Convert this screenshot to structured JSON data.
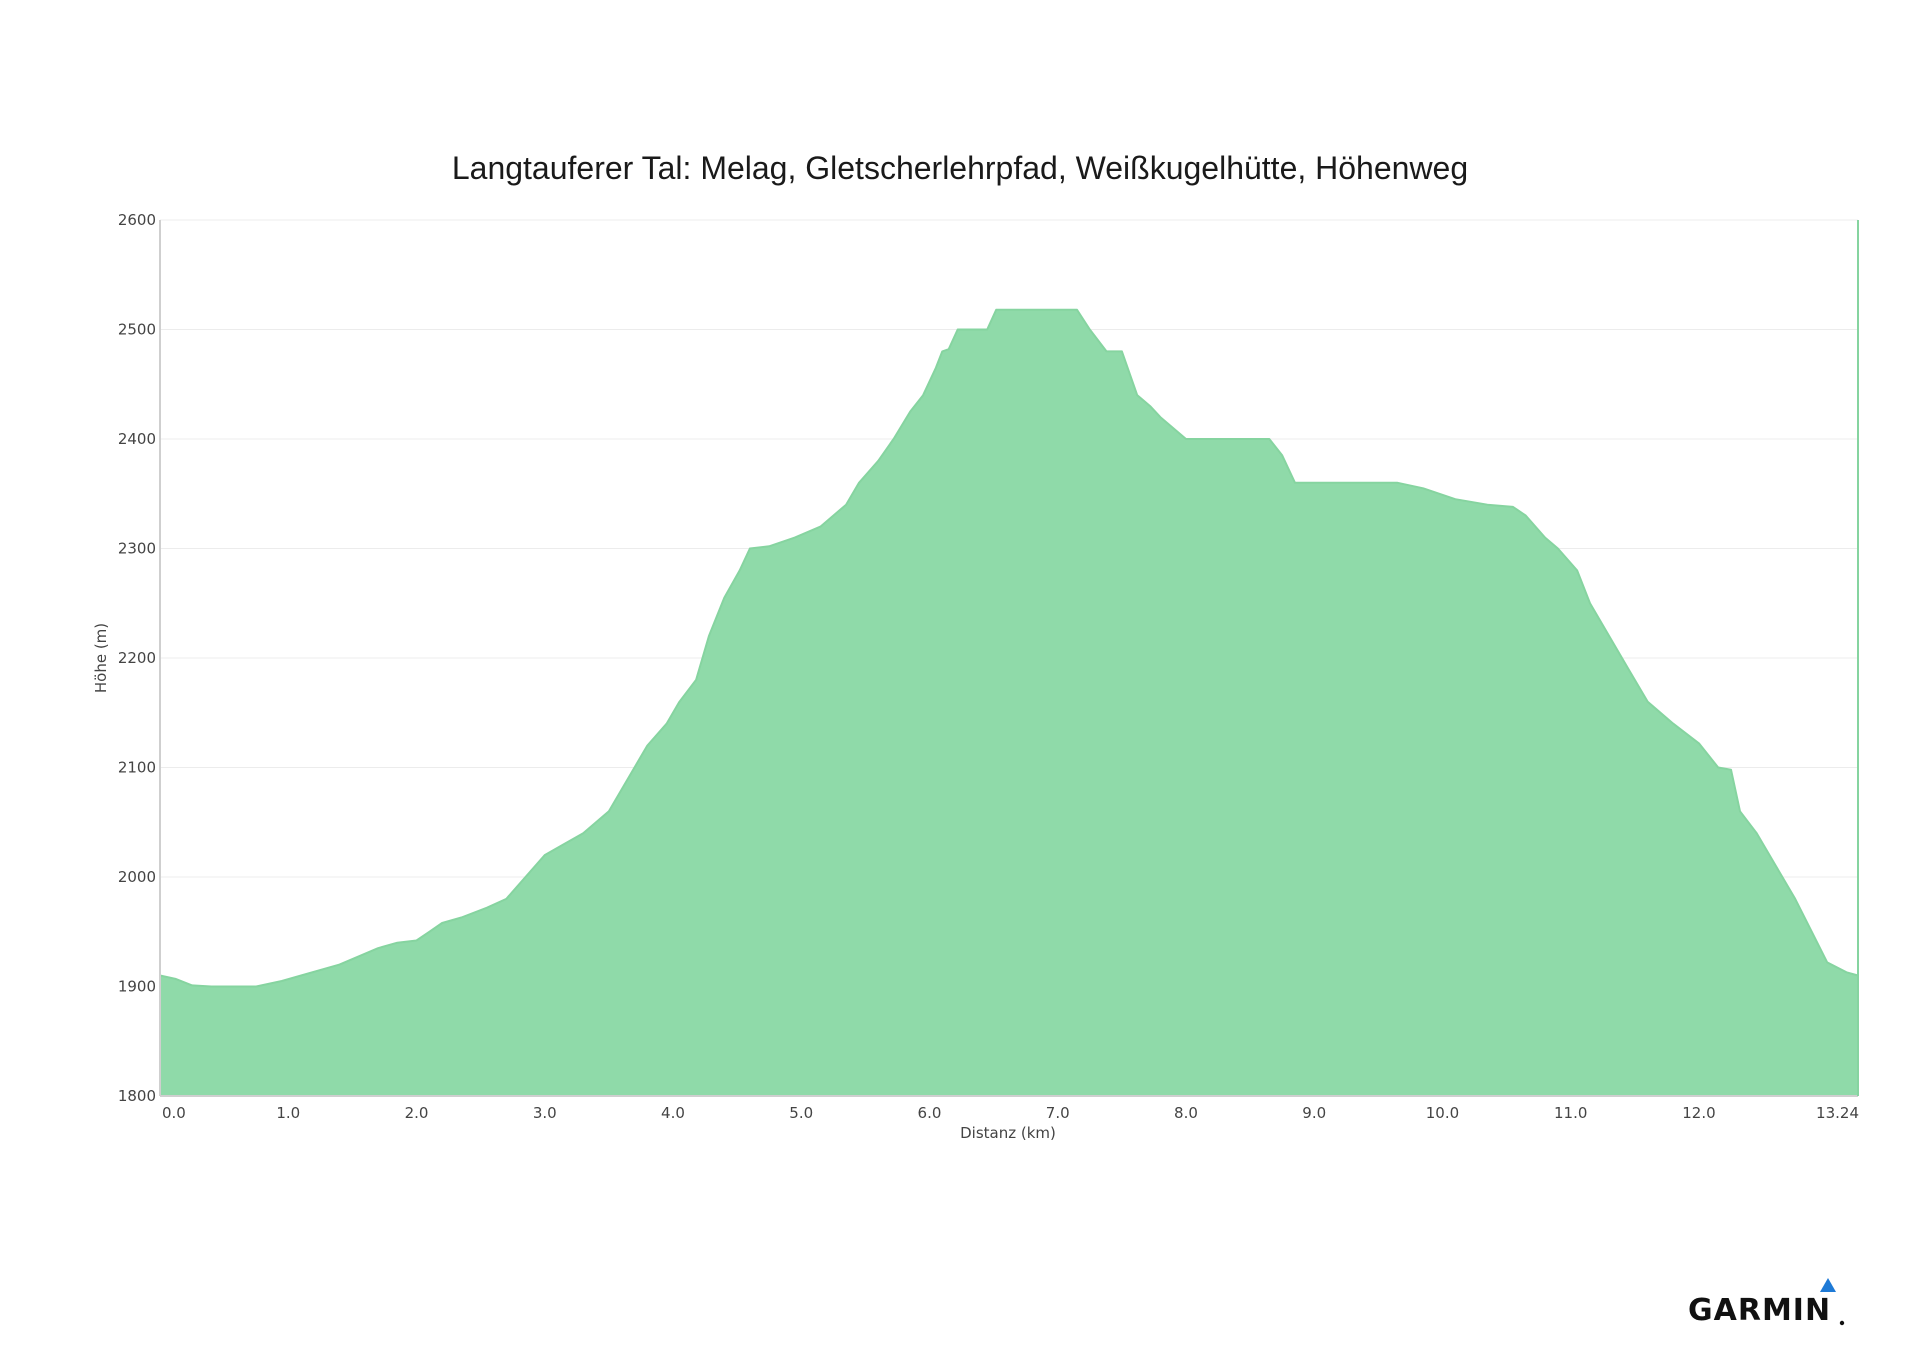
{
  "chart_data": {
    "type": "area",
    "title": "Langtauferer Tal: Melag, Gletscherlehrpfad, Weißkugelhütte, Höhenweg",
    "xlabel": "Distanz (km)",
    "ylabel": "Höhe (m)",
    "xlim": [
      0,
      13.24
    ],
    "ylim": [
      1800,
      2600
    ],
    "x_ticks": [
      "0.0",
      "1.0",
      "2.0",
      "3.0",
      "4.0",
      "5.0",
      "6.0",
      "7.0",
      "8.0",
      "9.0",
      "10.0",
      "11.0",
      "12.0",
      "13.24"
    ],
    "y_ticks": [
      "1800",
      "1900",
      "2000",
      "2100",
      "2200",
      "2300",
      "2400",
      "2500",
      "2600"
    ],
    "grid": true,
    "fill_color": "#8fdaa9",
    "line_color": "#86d4a0",
    "points": [
      [
        0.0,
        1910
      ],
      [
        0.12,
        1907
      ],
      [
        0.25,
        1901
      ],
      [
        0.4,
        1900
      ],
      [
        0.75,
        1900
      ],
      [
        0.95,
        1905
      ],
      [
        1.1,
        1910
      ],
      [
        1.4,
        1920
      ],
      [
        1.7,
        1935
      ],
      [
        1.85,
        1940
      ],
      [
        2.0,
        1942
      ],
      [
        2.1,
        1950
      ],
      [
        2.2,
        1958
      ],
      [
        2.35,
        1963
      ],
      [
        2.55,
        1972
      ],
      [
        2.7,
        1980
      ],
      [
        2.85,
        2000
      ],
      [
        3.0,
        2020
      ],
      [
        3.15,
        2030
      ],
      [
        3.3,
        2040
      ],
      [
        3.5,
        2060
      ],
      [
        3.6,
        2080
      ],
      [
        3.7,
        2100
      ],
      [
        3.8,
        2120
      ],
      [
        3.95,
        2140
      ],
      [
        4.05,
        2160
      ],
      [
        4.18,
        2180
      ],
      [
        4.28,
        2220
      ],
      [
        4.4,
        2255
      ],
      [
        4.52,
        2280
      ],
      [
        4.6,
        2300
      ],
      [
        4.75,
        2302
      ],
      [
        4.95,
        2310
      ],
      [
        5.15,
        2320
      ],
      [
        5.35,
        2340
      ],
      [
        5.45,
        2360
      ],
      [
        5.6,
        2380
      ],
      [
        5.72,
        2400
      ],
      [
        5.85,
        2425
      ],
      [
        5.95,
        2440
      ],
      [
        6.05,
        2465
      ],
      [
        6.1,
        2480
      ],
      [
        6.15,
        2482
      ],
      [
        6.22,
        2500
      ],
      [
        6.45,
        2500
      ],
      [
        6.52,
        2518
      ],
      [
        7.15,
        2518
      ],
      [
        7.25,
        2500
      ],
      [
        7.38,
        2480
      ],
      [
        7.5,
        2480
      ],
      [
        7.62,
        2440
      ],
      [
        7.72,
        2430
      ],
      [
        7.8,
        2420
      ],
      [
        8.0,
        2400
      ],
      [
        8.65,
        2400
      ],
      [
        8.75,
        2385
      ],
      [
        8.85,
        2360
      ],
      [
        9.65,
        2360
      ],
      [
        9.85,
        2355
      ],
      [
        10.1,
        2345
      ],
      [
        10.35,
        2340
      ],
      [
        10.55,
        2338
      ],
      [
        10.65,
        2330
      ],
      [
        10.8,
        2310
      ],
      [
        10.9,
        2300
      ],
      [
        11.05,
        2280
      ],
      [
        11.15,
        2250
      ],
      [
        11.3,
        2220
      ],
      [
        11.45,
        2190
      ],
      [
        11.6,
        2160
      ],
      [
        11.8,
        2140
      ],
      [
        12.0,
        2122
      ],
      [
        12.15,
        2100
      ],
      [
        12.25,
        2098
      ],
      [
        12.32,
        2060
      ],
      [
        12.45,
        2040
      ],
      [
        12.6,
        2010
      ],
      [
        12.75,
        1980
      ],
      [
        12.88,
        1950
      ],
      [
        13.0,
        1922
      ],
      [
        13.15,
        1913
      ],
      [
        13.24,
        1910
      ]
    ]
  },
  "branding": {
    "logo_text": "GARMIN",
    "logo_mark": "triangle-icon",
    "mark_color": "#1e7ad6"
  }
}
